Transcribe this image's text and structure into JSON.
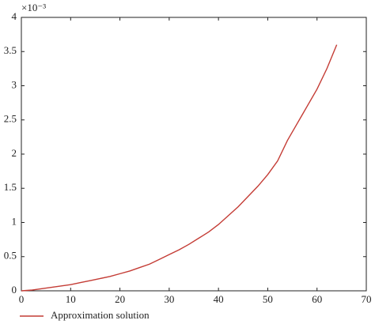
{
  "chart_data": {
    "type": "line",
    "y_multiplier": "×10⁻³",
    "x": [
      0,
      2,
      4,
      6,
      8,
      10,
      12,
      14,
      16,
      18,
      20,
      22,
      24,
      26,
      28,
      30,
      32,
      34,
      36,
      38,
      40,
      42,
      44,
      46,
      48,
      50,
      52,
      54,
      56,
      58,
      60,
      62,
      64
    ],
    "series": [
      {
        "name": "Approximation solution",
        "color": "#c43c35",
        "values": [
          0,
          0.01,
          0.03,
          0.05,
          0.07,
          0.09,
          0.12,
          0.15,
          0.18,
          0.21,
          0.25,
          0.29,
          0.34,
          0.39,
          0.46,
          0.53,
          0.6,
          0.68,
          0.77,
          0.86,
          0.97,
          1.1,
          1.23,
          1.38,
          1.53,
          1.7,
          1.9,
          2.2,
          2.45,
          2.7,
          2.95,
          3.25,
          3.6
        ]
      }
    ],
    "xlim": [
      0,
      70
    ],
    "xticks": [
      0,
      10,
      20,
      30,
      40,
      50,
      60,
      70
    ],
    "ylim": [
      0,
      4
    ],
    "yticks": [
      0,
      0.5,
      1,
      1.5,
      2,
      2.5,
      3,
      3.5,
      4
    ],
    "legend": "bottom-left"
  }
}
